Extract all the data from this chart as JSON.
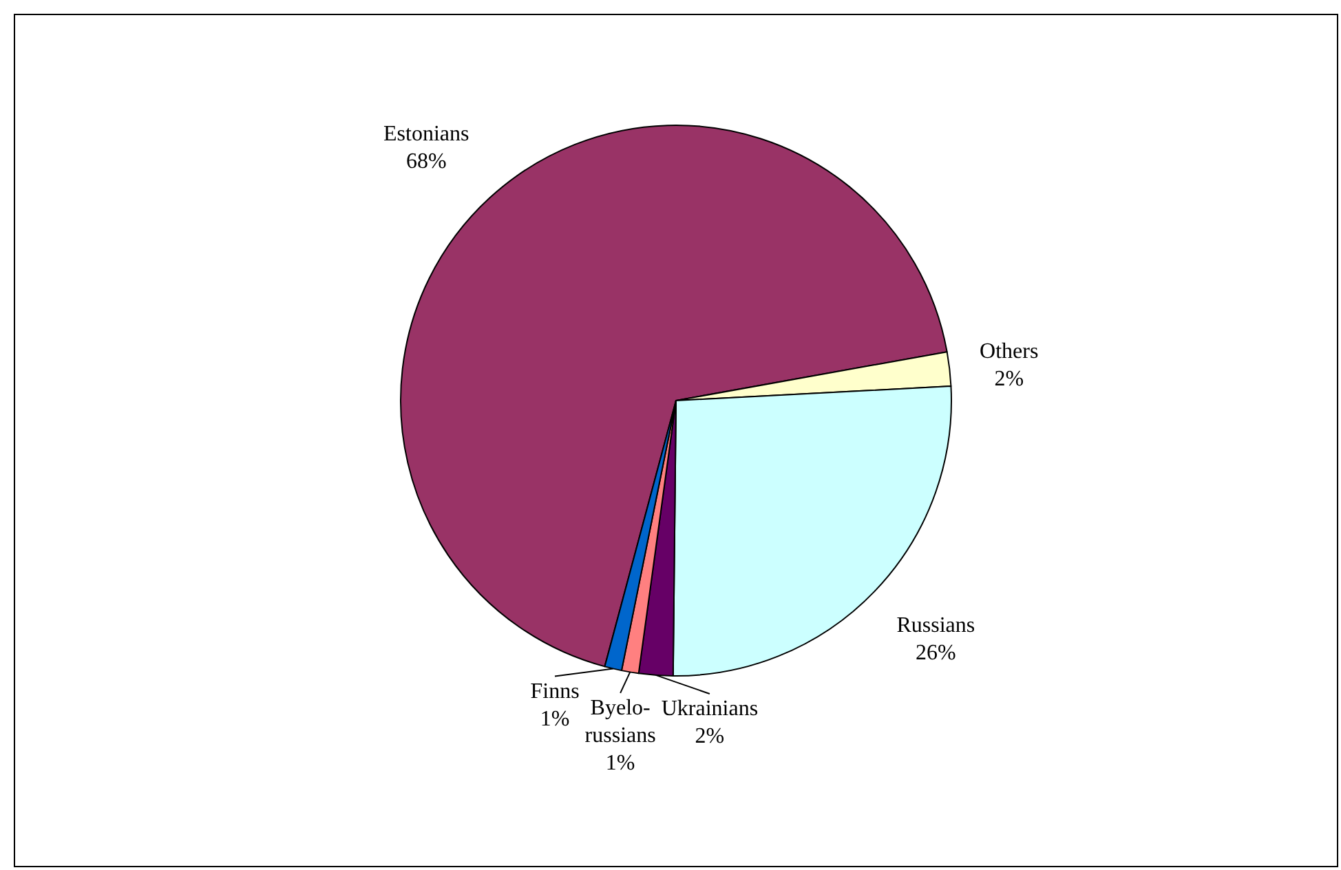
{
  "chart_data": {
    "type": "pie",
    "categories": [
      "Estonians",
      "Others",
      "Russians",
      "Ukrainians",
      "Byelo-\nrussians",
      "Finns"
    ],
    "values": [
      68,
      2,
      26,
      2,
      1,
      1
    ],
    "value_labels": [
      "68%",
      "2%",
      "26%",
      "2%",
      "1%",
      "1%"
    ],
    "colors": [
      "#993366",
      "#ffffcc",
      "#ccffff",
      "#660066",
      "#ff8080",
      "#0066cc"
    ],
    "legend": false
  }
}
